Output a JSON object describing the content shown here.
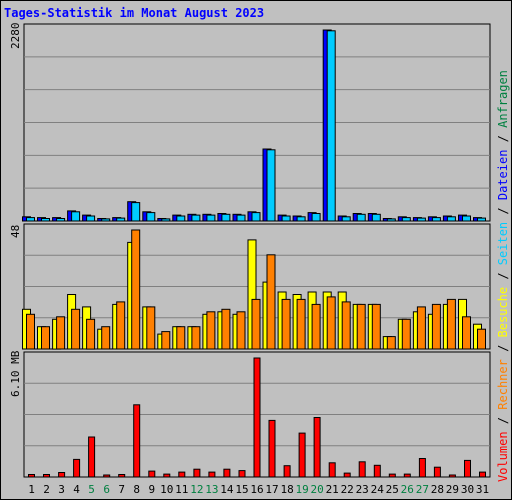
{
  "chart_data": {
    "type": "bar",
    "title": "Tages-Statistik im Monat August 2023",
    "categories": [
      "1",
      "2",
      "3",
      "4",
      "5",
      "6",
      "7",
      "8",
      "9",
      "10",
      "11",
      "12",
      "13",
      "14",
      "15",
      "16",
      "17",
      "18",
      "19",
      "20",
      "21",
      "22",
      "23",
      "24",
      "25",
      "26",
      "27",
      "28",
      "29",
      "30",
      "31"
    ],
    "weekend_days": [
      "5",
      "6",
      "12",
      "13",
      "19",
      "20",
      "26",
      "27"
    ],
    "panels": [
      {
        "name": "top",
        "ytick_label": "2280",
        "ylim": [
          0,
          2280
        ],
        "grid": true,
        "series": [
          {
            "name": "Anfragen",
            "color": "#0000FF",
            "values": [
              50,
              40,
              40,
              120,
              70,
              30,
              40,
              230,
              110,
              30,
              70,
              80,
              80,
              90,
              80,
              110,
              860,
              70,
              60,
              100,
              2280,
              60,
              90,
              90,
              30,
              50,
              40,
              50,
              60,
              70,
              40
            ]
          },
          {
            "name": "Dateien",
            "color": "#00CCFF",
            "values": [
              40,
              30,
              30,
              110,
              60,
              25,
              35,
              220,
              100,
              25,
              60,
              70,
              70,
              80,
              70,
              100,
              850,
              60,
              50,
              90,
              2270,
              50,
              80,
              80,
              25,
              40,
              35,
              40,
              50,
              60,
              35
            ]
          }
        ]
      },
      {
        "name": "middle",
        "ytick_label": "48",
        "ylim": [
          0,
          48
        ],
        "grid": true,
        "series": [
          {
            "name": "Seiten",
            "color": "#FFFF00",
            "values": [
              16,
              9,
              12,
              22,
              17,
              8,
              18,
              43,
              17,
              6,
              9,
              9,
              14,
              15,
              14,
              44,
              27,
              23,
              22,
              23,
              23,
              23,
              18,
              18,
              5,
              12,
              15,
              14,
              18,
              20,
              10
            ]
          },
          {
            "name": "Besuche",
            "color": "#FF8000",
            "values": [
              14,
              9,
              13,
              16,
              12,
              9,
              19,
              48,
              17,
              7,
              9,
              9,
              15,
              16,
              15,
              20,
              38,
              20,
              20,
              18,
              21,
              19,
              18,
              18,
              5,
              12,
              17,
              18,
              20,
              13,
              8
            ]
          }
        ]
      },
      {
        "name": "bottom",
        "ytick_label": "6.10 MB",
        "ylim": [
          0,
          6.1
        ],
        "grid": true,
        "series": [
          {
            "name": "Volumen",
            "color": "#FF0000",
            "values": [
              0.13,
              0.13,
              0.23,
              0.9,
              2.05,
              0.1,
              0.13,
              3.7,
              0.3,
              0.15,
              0.25,
              0.4,
              0.25,
              0.4,
              0.33,
              6.1,
              2.9,
              0.58,
              2.25,
              3.05,
              0.73,
              0.2,
              0.78,
              0.6,
              0.15,
              0.15,
              0.95,
              0.5,
              0.1,
              0.85,
              0.25
            ]
          }
        ]
      }
    ],
    "side_legend": [
      {
        "text": "Volumen",
        "color": "#FF0000"
      },
      {
        "text": "Rechner",
        "color": "#FF8000"
      },
      {
        "text": "Besuche",
        "color": "#FFFF00"
      },
      {
        "text": "Seiten",
        "color": "#00CCFF"
      },
      {
        "text": "Dateien",
        "color": "#0000FF"
      },
      {
        "text": "Anfragen",
        "color": "#008040"
      }
    ]
  }
}
